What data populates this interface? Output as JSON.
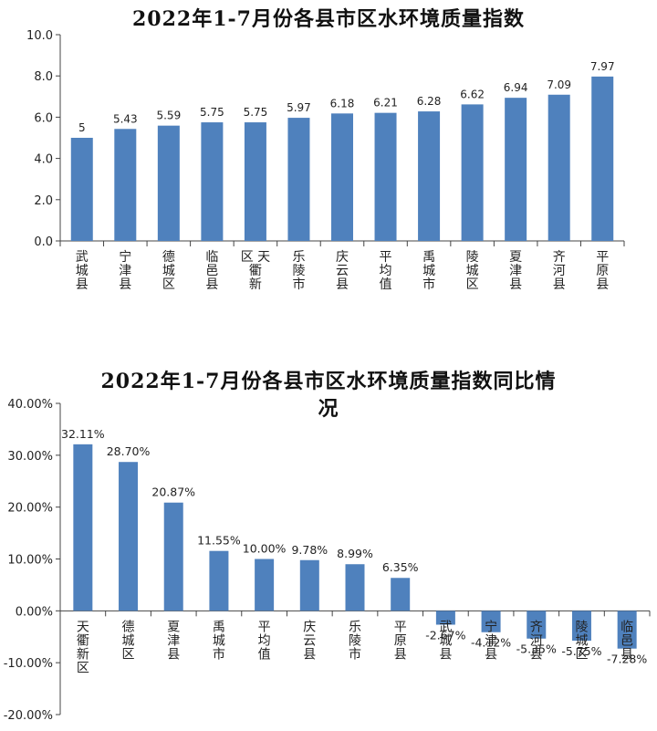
{
  "chart_data": [
    {
      "type": "bar",
      "title": "2022年1-7月份各县市区水环境质量指数",
      "categories": [
        "武城县",
        "宁津县",
        "德城区",
        "临邑县",
        "天衢新区",
        "乐陵市",
        "庆云县",
        "平均值",
        "禹城市",
        "陵城区",
        "夏津县",
        "齐河县",
        "平原县"
      ],
      "category_labels": [
        "武\n城\n县",
        "宁\n津\n县",
        "德\n城\n区",
        "临\n邑\n县",
        "区 天\n衢\n新",
        "乐\n陵\n市",
        "庆\n云\n县",
        "平\n均\n值",
        "禹\n城\n市",
        "陵\n城\n区",
        "夏\n津\n县",
        "齐\n河\n县",
        "平\n原\n县"
      ],
      "values": [
        5,
        5.43,
        5.59,
        5.75,
        5.75,
        5.97,
        6.18,
        6.21,
        6.28,
        6.62,
        6.94,
        7.09,
        7.97
      ],
      "value_labels": [
        "5",
        "5.43",
        "5.59",
        "5.75",
        "5.75",
        "5.97",
        "6.18",
        "6.21",
        "6.28",
        "6.62",
        "6.94",
        "7.09",
        "7.97"
      ],
      "ylim": [
        0,
        10
      ],
      "yticks": [
        "0.0",
        "2.0",
        "4.0",
        "6.0",
        "8.0",
        "10.0"
      ],
      "color": "#4F81BD"
    },
    {
      "type": "bar",
      "title": "2022年1-7月份各县市区水环境质量指数同比情况",
      "title_lines": [
        "2022年1-7月份各县市区水环境质量指数同比情",
        "况"
      ],
      "categories": [
        "天衢新区",
        "德城区",
        "夏津县",
        "禹城市",
        "平均值",
        "庆云县",
        "乐陵市",
        "平原县",
        "武城县",
        "宁津县",
        "齐河县",
        "陵城区",
        "临邑县"
      ],
      "category_labels": [
        "天\n衢\n新\n区",
        "德\n城\n区",
        "夏\n津\n县",
        "禹\n城\n市",
        "平\n均\n值",
        "庆\n云\n县",
        "乐\n陵\n市",
        "平\n原\n县",
        "武\n城\n县",
        "宁\n津\n县",
        "齐\n河\n县",
        "陵\n城\n区",
        "临\n邑\n县"
      ],
      "values": [
        32.11,
        28.7,
        20.87,
        11.55,
        10.0,
        9.78,
        8.99,
        6.35,
        -2.67,
        -4.12,
        -5.35,
        -5.75,
        -7.28
      ],
      "value_labels": [
        "32.11%",
        "28.70%",
        "20.87%",
        "11.55%",
        "10.00%",
        "9.78%",
        "8.99%",
        "6.35%",
        "-2.67%",
        "-4.12%",
        "-5.35%",
        "-5.75%",
        "-7.28%"
      ],
      "ylim": [
        -20,
        40
      ],
      "yticks": [
        "-20.00%",
        "-10.00%",
        "0.00%",
        "10.00%",
        "20.00%",
        "30.00%",
        "40.00%"
      ],
      "color": "#4F81BD"
    }
  ]
}
